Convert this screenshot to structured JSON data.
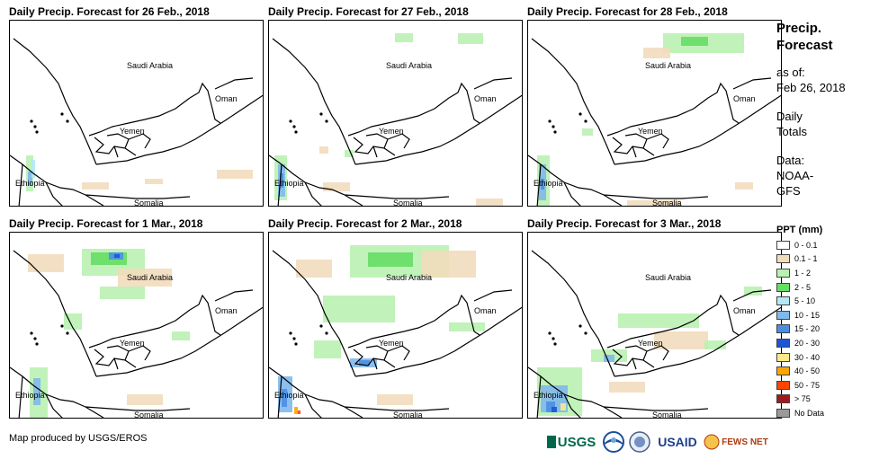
{
  "panels": [
    {
      "title": "Daily Precip. Forecast for 26 Feb., 2018"
    },
    {
      "title": "Daily Precip. Forecast for 27 Feb., 2018"
    },
    {
      "title": "Daily Precip. Forecast for 28 Feb., 2018"
    },
    {
      "title": "Daily Precip. Forecast for 1 Mar., 2018"
    },
    {
      "title": "Daily Precip. Forecast for 2 Mar., 2018"
    },
    {
      "title": "Daily Precip. Forecast for 3 Mar., 2018"
    }
  ],
  "map_labels": {
    "saudi": "Saudi Arabia",
    "oman": "Oman",
    "yemen": "Yemen",
    "ethiopia": "Ethiopia",
    "somalia": "Somalia"
  },
  "sidebar": {
    "title_line1": "Precip.",
    "title_line2": "Forecast",
    "asof_line1": "as of:",
    "asof_line2": "Feb 26, 2018",
    "totals_line1": "Daily",
    "totals_line2": "Totals",
    "data_line1": "Data:",
    "data_line2": "NOAA-",
    "data_line3": "GFS"
  },
  "legend": {
    "title": "PPT (mm)",
    "items": [
      {
        "label": "0 - 0.1",
        "color": "#ffffff"
      },
      {
        "label": "0.1 - 1",
        "color": "#f2dcbd"
      },
      {
        "label": "1 - 2",
        "color": "#b9f1b1"
      },
      {
        "label": "2 - 5",
        "color": "#66dd66"
      },
      {
        "label": "5 - 10",
        "color": "#b5e8f6"
      },
      {
        "label": "10 - 15",
        "color": "#7fb8ec"
      },
      {
        "label": "15 - 20",
        "color": "#4a8fe4"
      },
      {
        "label": "20 - 30",
        "color": "#1d55d8"
      },
      {
        "label": "30 - 40",
        "color": "#ffe88a"
      },
      {
        "label": "40 - 50",
        "color": "#ffa500"
      },
      {
        "label": "50 - 75",
        "color": "#ff4500"
      },
      {
        "label": "> 75",
        "color": "#a31a1a"
      },
      {
        "label": "No Data",
        "color": "#9a9a9a"
      }
    ]
  },
  "credit": "Map produced by USGS/EROS",
  "logos": {
    "usgs": "USGS",
    "usaid": "USAID",
    "fewsnet": "FEWS NET"
  }
}
